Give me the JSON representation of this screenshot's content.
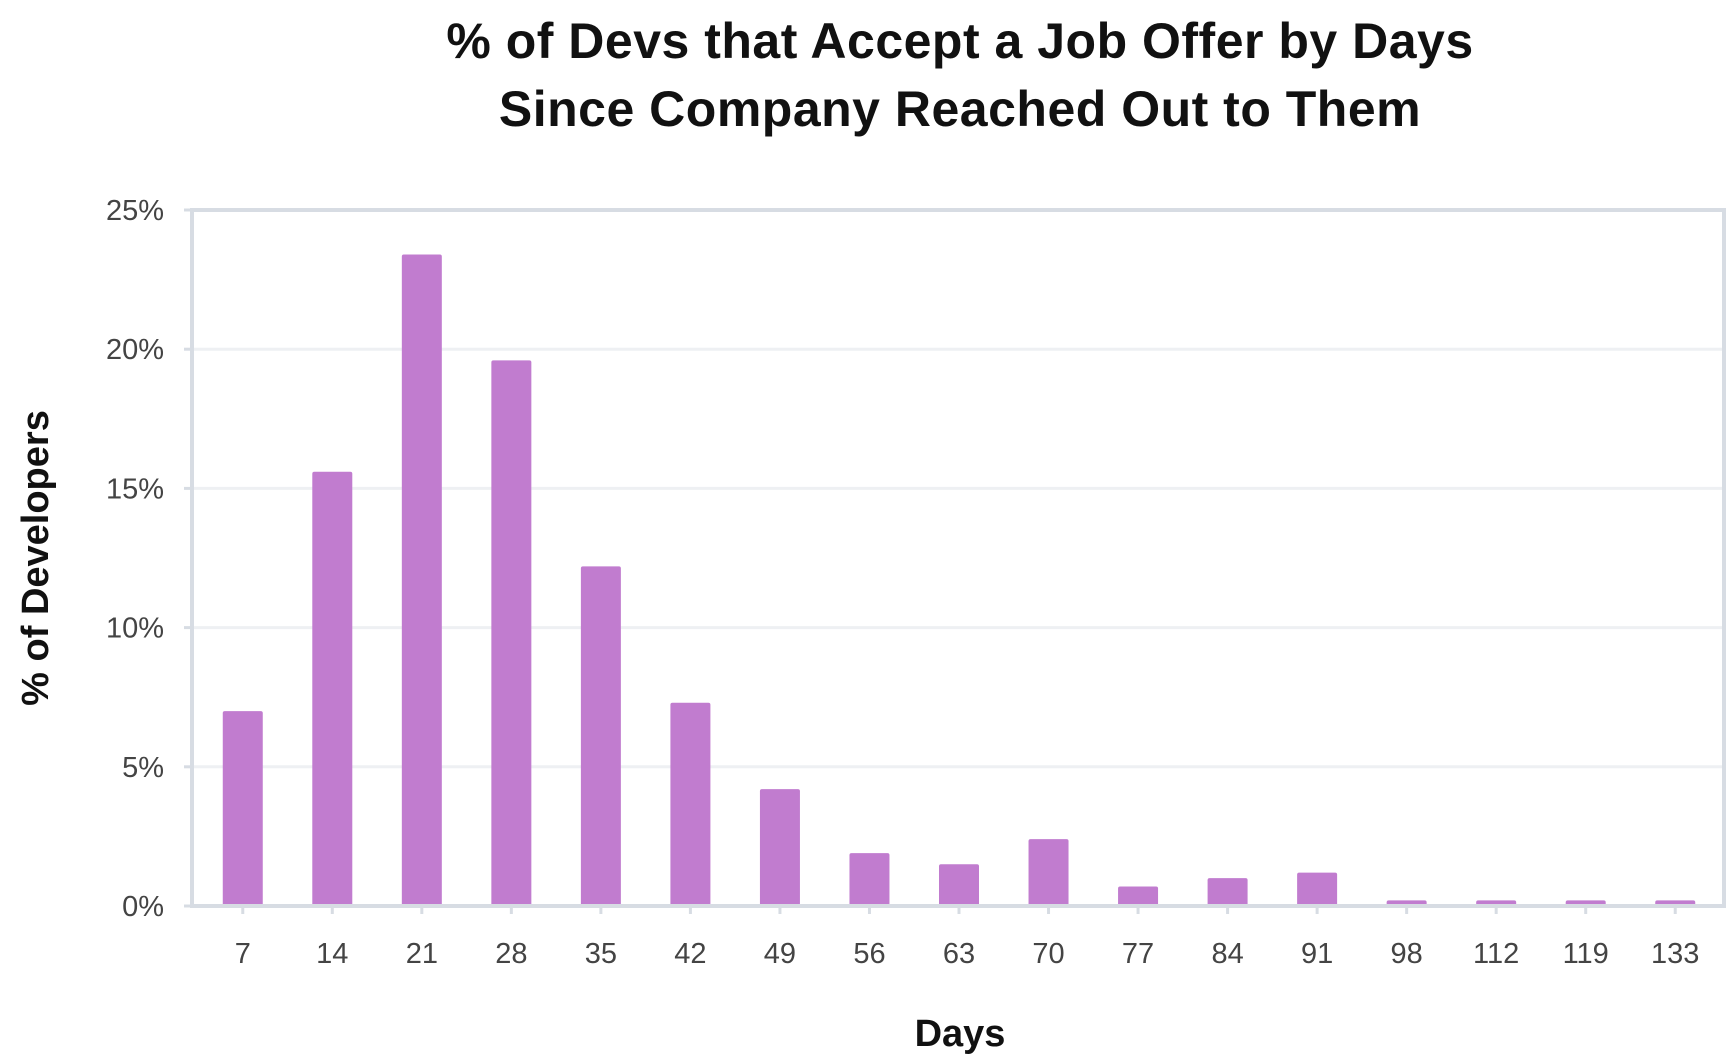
{
  "chart_data": {
    "type": "bar",
    "title": [
      "% of Devs that Accept a Job Offer by Days",
      "Since Company Reached Out to Them"
    ],
    "xlabel": "Days",
    "ylabel": "% of Developers",
    "categories": [
      "7",
      "14",
      "21",
      "28",
      "35",
      "42",
      "49",
      "56",
      "63",
      "70",
      "77",
      "84",
      "91",
      "98",
      "112",
      "119",
      "133"
    ],
    "values": [
      7.0,
      15.6,
      23.4,
      19.6,
      12.2,
      7.3,
      4.2,
      1.9,
      1.5,
      2.4,
      0.7,
      1.0,
      1.2,
      0.2,
      0.2,
      0.2,
      0.2
    ],
    "ylim": [
      0,
      25
    ],
    "yticks": [
      0,
      5,
      10,
      15,
      20,
      25
    ],
    "ytick_labels": [
      "0%",
      "5%",
      "10%",
      "15%",
      "20%",
      "25%"
    ],
    "grid": true,
    "bar_color": "#c17ccf"
  }
}
